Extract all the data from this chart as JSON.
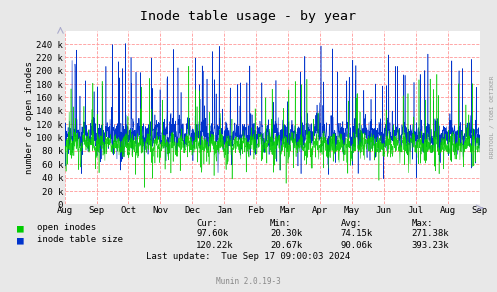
{
  "title": "Inode table usage - by year",
  "ylabel": "number of open inodes",
  "right_label": "RRDTOOL / TOBI OETIKER",
  "x_tick_labels": [
    "Aug",
    "Sep",
    "Oct",
    "Nov",
    "Dec",
    "Jan",
    "Feb",
    "Mar",
    "Apr",
    "May",
    "Jun",
    "Jul",
    "Aug",
    "Sep"
  ],
  "y_ticks": [
    0,
    20000,
    40000,
    60000,
    80000,
    100000,
    120000,
    140000,
    160000,
    180000,
    200000,
    220000,
    240000
  ],
  "y_tick_labels": [
    "0",
    "20 k",
    "40 k",
    "60 k",
    "80 k",
    "100 k",
    "120 k",
    "140 k",
    "160 k",
    "180 k",
    "200 k",
    "220 k",
    "240 k"
  ],
  "ylim": [
    0,
    260000
  ],
  "background_color": "#e8e8e8",
  "plot_bg_color": "#ffffff",
  "grid_color": "#ff9999",
  "open_inodes_color": "#00cc00",
  "inode_table_color": "#0033cc",
  "stats_cur_open": "97.60k",
  "stats_min_open": "20.30k",
  "stats_avg_open": "74.15k",
  "stats_max_open": "271.38k",
  "stats_cur_table": "120.22k",
  "stats_min_table": "20.67k",
  "stats_avg_table": "90.06k",
  "stats_max_table": "393.23k",
  "last_update": "Last update:  Tue Sep 17 09:00:03 2024",
  "munin_version": "Munin 2.0.19-3",
  "num_points": 2000,
  "seed": 7
}
